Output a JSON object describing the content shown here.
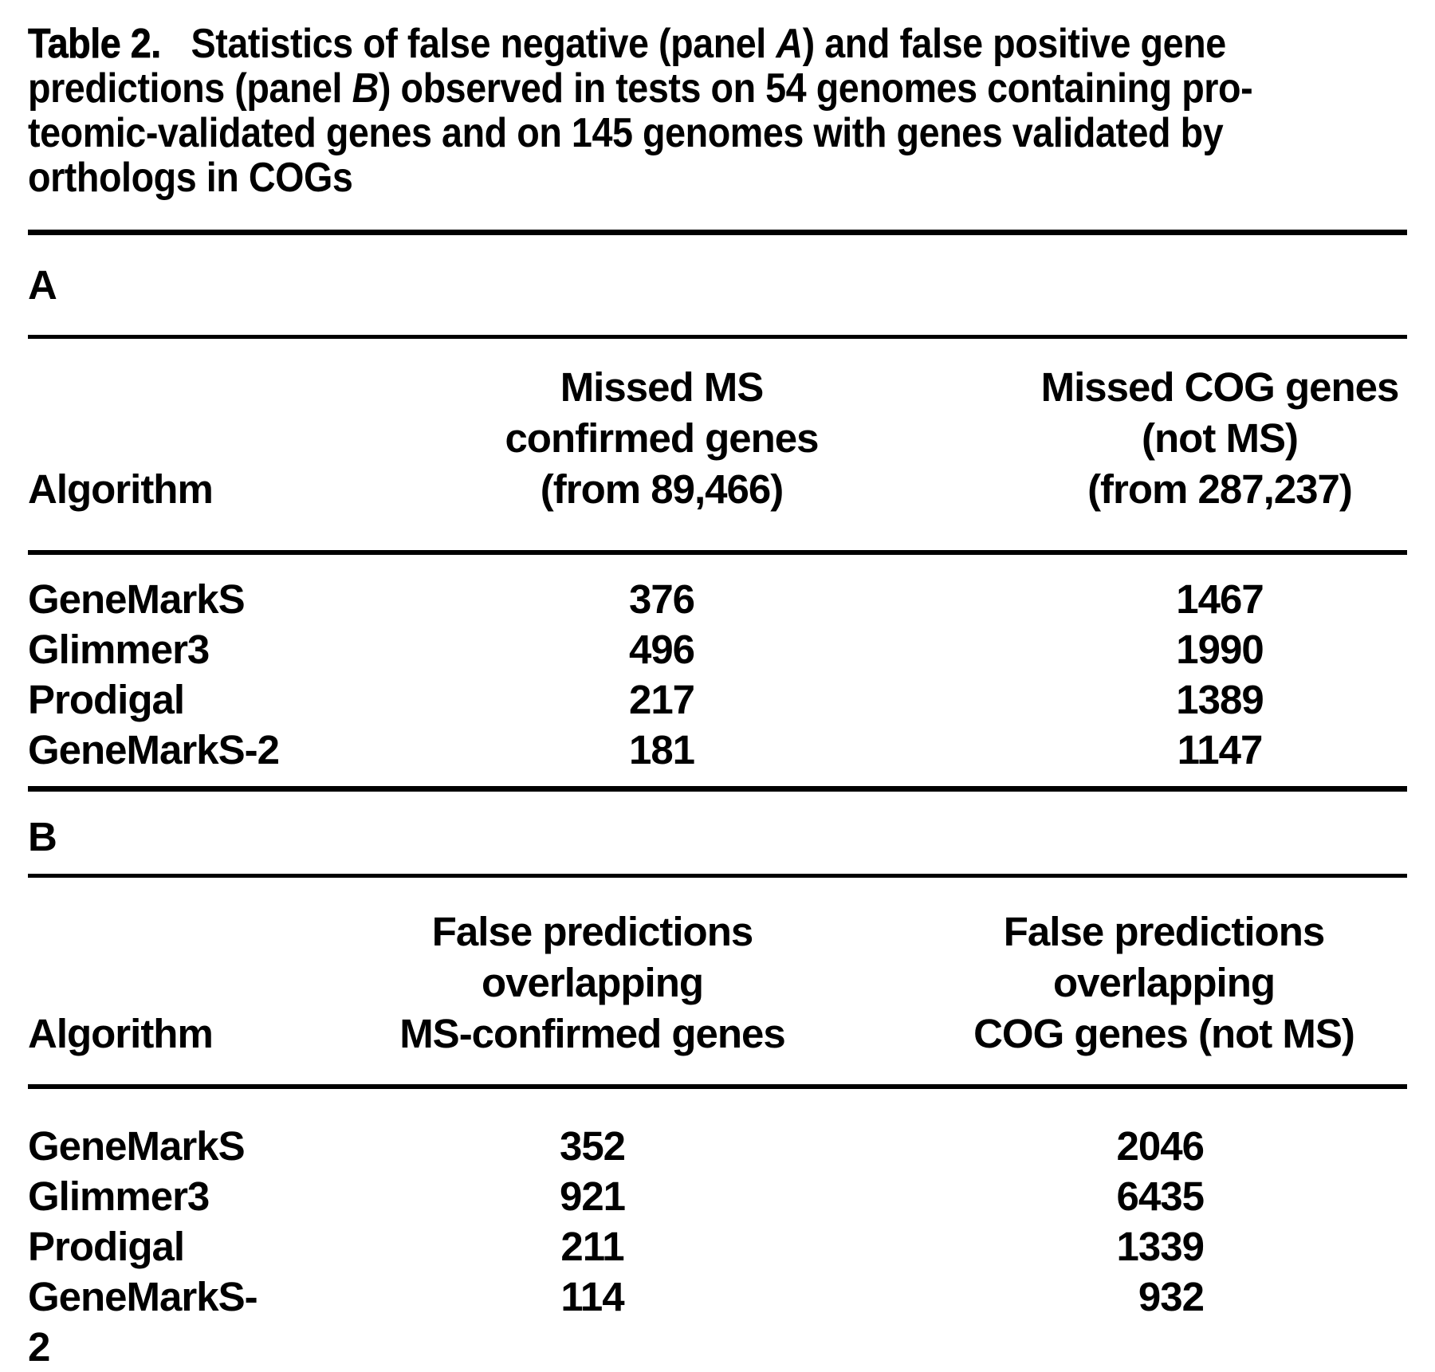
{
  "title": {
    "label": "Table 2.",
    "line1_pre": "Statistics of false negative (panel ",
    "line1_italic": "A",
    "line1_post": ") and false positive gene",
    "line2_pre": "predictions (panel ",
    "line2_italic": "B",
    "line2_post": ") observed in tests on 54 genomes containing pro-",
    "line3": "teomic-validated genes and on 145 genomes with genes validated by",
    "line4": "orthologs in COGs"
  },
  "colors": {
    "text": "#000000",
    "background": "#ffffff",
    "rule": "#000000"
  },
  "panelA": {
    "label": "A",
    "columns": {
      "algorithm": "Algorithm",
      "col2_lines": [
        "Missed MS",
        "confirmed genes",
        "(from 89,466)"
      ],
      "col3_lines": [
        "Missed COG genes",
        "(not MS)",
        "(from 287,237)"
      ]
    },
    "rows": [
      {
        "algorithm": "GeneMarkS",
        "missed_ms": "376",
        "missed_cog": "1467"
      },
      {
        "algorithm": "Glimmer3",
        "missed_ms": "496",
        "missed_cog": "1990"
      },
      {
        "algorithm": "Prodigal",
        "missed_ms": "217",
        "missed_cog": "1389"
      },
      {
        "algorithm": "GeneMarkS-2",
        "missed_ms": "181",
        "missed_cog": "1147"
      }
    ]
  },
  "panelB": {
    "label": "B",
    "columns": {
      "algorithm": "Algorithm",
      "col2_lines": [
        "False predictions",
        "overlapping",
        "MS-confirmed genes"
      ],
      "col3_lines": [
        "False predictions",
        "overlapping",
        "COG genes (not MS)"
      ]
    },
    "rows": [
      {
        "algorithm": "GeneMarkS",
        "false_ms": "352",
        "false_cog": "2046"
      },
      {
        "algorithm": "Glimmer3",
        "false_ms": "921",
        "false_cog": "6435"
      },
      {
        "algorithm": "Prodigal",
        "false_ms": "211",
        "false_cog": "1339"
      },
      {
        "algorithm": "GeneMarkS-2",
        "false_ms": "114",
        "false_cog": "932"
      }
    ]
  }
}
